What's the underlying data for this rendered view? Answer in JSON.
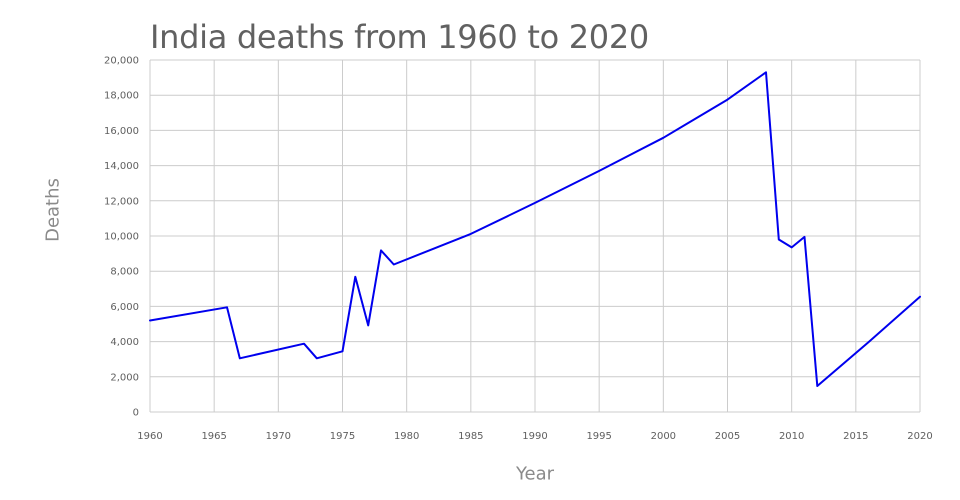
{
  "chart_data": {
    "type": "line",
    "title": "India deaths from 1960 to 2020",
    "xlabel": "Year",
    "ylabel": "Deaths",
    "xlim": [
      1960,
      2020
    ],
    "ylim": [
      0,
      20000
    ],
    "x_ticks": [
      "1960",
      "1965",
      "1970",
      "1975",
      "1980",
      "1985",
      "1990",
      "1995",
      "2000",
      "2005",
      "2010",
      "2015",
      "2020"
    ],
    "y_ticks": [
      "0",
      "2,000",
      "4,000",
      "6,000",
      "8,000",
      "10,000",
      "12,000",
      "14,000",
      "16,000",
      "18,000",
      "20,000"
    ],
    "grid": true,
    "line_color": "#0000ee",
    "grid_color": "#cccccc",
    "series": [
      {
        "x": [
          1960,
          1966,
          1967,
          1972,
          1973,
          1975,
          1976,
          1977,
          1978,
          1979,
          1985,
          1990,
          1995,
          2000,
          2005,
          2008,
          2009,
          2010,
          2011,
          2012,
          2016,
          2020
        ],
        "values": [
          5200,
          5950,
          3050,
          3880,
          3050,
          3450,
          7680,
          4920,
          9180,
          8380,
          10120,
          11880,
          13700,
          15580,
          17750,
          19300,
          9800,
          9350,
          9950,
          1480,
          3980,
          6550
        ]
      }
    ]
  }
}
